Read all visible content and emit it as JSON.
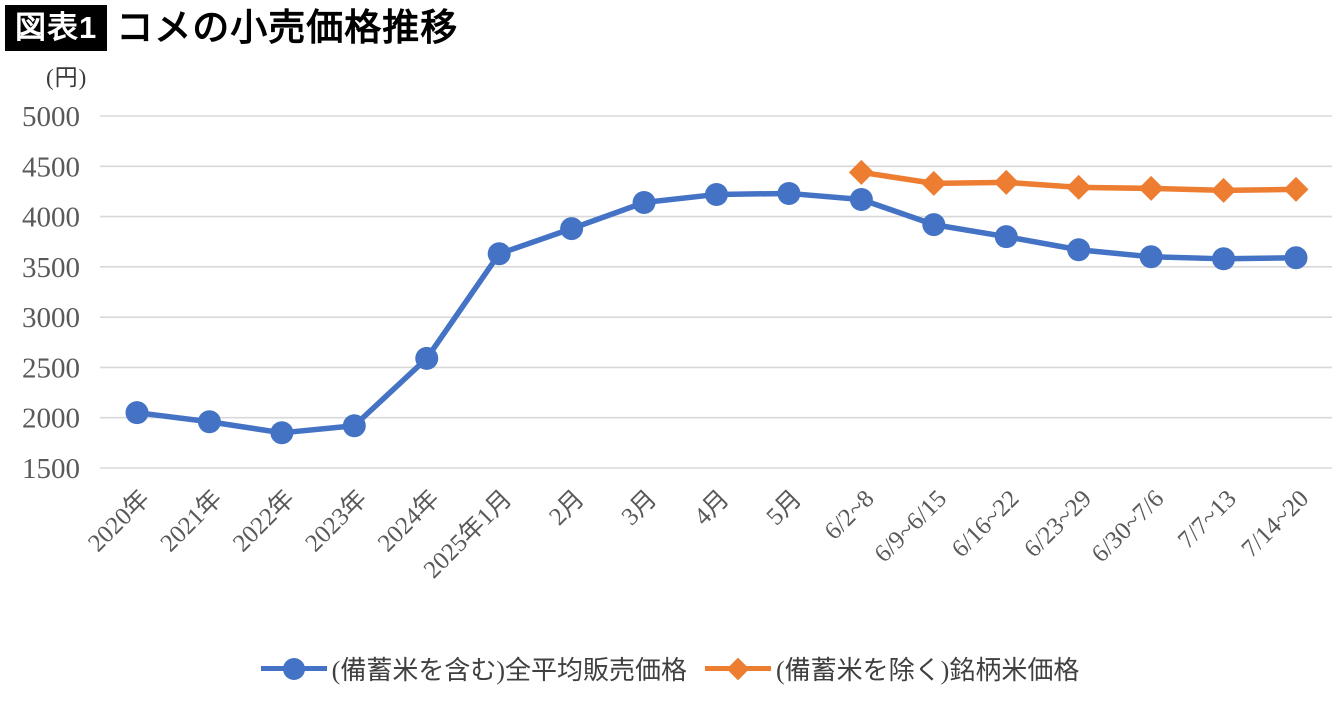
{
  "header": {
    "badge": "図表1",
    "title": "コメの小売価格推移"
  },
  "axis_unit": "(円)",
  "chart_data": {
    "type": "line",
    "title": "コメの小売価格推移",
    "ylabel": "円",
    "ylim": [
      1500,
      5000
    ],
    "y_ticks": [
      5000,
      4500,
      4000,
      3500,
      3000,
      2500,
      2000,
      1500
    ],
    "grid": true,
    "legend_position": "bottom",
    "categories": [
      "2020年",
      "2021年",
      "2022年",
      "2023年",
      "2024年",
      "2025年1月",
      "2月",
      "3月",
      "4月",
      "5月",
      "6/2~8",
      "6/9~6/15",
      "6/16~22",
      "6/23~29",
      "6/30~7/6",
      "7/7~13",
      "7/14~20"
    ],
    "series": [
      {
        "name": "(備蓄米を含む)全平均販売価格",
        "color": "#4472C4",
        "marker": "circle",
        "values": [
          2050,
          1960,
          1850,
          1920,
          2590,
          3630,
          3880,
          4140,
          4220,
          4230,
          4170,
          3920,
          3800,
          3670,
          3600,
          3580,
          3590
        ]
      },
      {
        "name": "(備蓄米を除く)銘柄米価格",
        "color": "#ED7D31",
        "marker": "diamond",
        "values": [
          null,
          null,
          null,
          null,
          null,
          null,
          null,
          null,
          null,
          null,
          4440,
          4330,
          4340,
          4290,
          4280,
          4260,
          4270
        ]
      }
    ]
  },
  "style_colors": {
    "gridline": "#D9D9D9",
    "axis_text": "#595959",
    "title_text": "#000000",
    "badge_bg": "#000000",
    "badge_text": "#FFFFFF"
  }
}
